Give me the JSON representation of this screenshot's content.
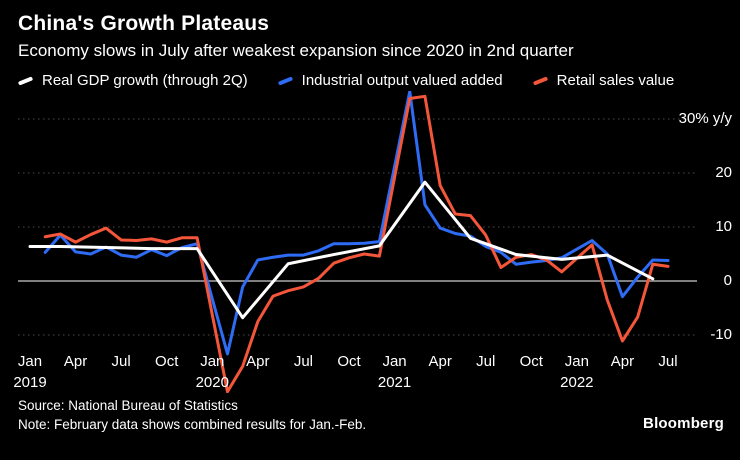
{
  "header": {
    "title": "China's Growth Plateaus",
    "subtitle": "Economy slows in July after weakest expansion since 2020 in 2nd quarter"
  },
  "legend": {
    "items": [
      {
        "label": "Real GDP growth (through 2Q)",
        "color": "#ffffff"
      },
      {
        "label": "Industrial output valued added",
        "color": "#2e6cf6"
      },
      {
        "label": "Retail sales value",
        "color": "#f4563a"
      }
    ]
  },
  "chart_data": {
    "type": "line",
    "x_unit": "month",
    "x_range": [
      "Jan 2019",
      "Jul 2022"
    ],
    "ylim": [
      -21,
      35
    ],
    "y_axis_label": "% y/y",
    "grid": "dotted horizontal",
    "legend_position": "top",
    "y_ticks": [
      {
        "label": "30% y/y",
        "value": 30
      },
      {
        "label": "20",
        "value": 20
      },
      {
        "label": "10",
        "value": 10
      },
      {
        "label": "0",
        "value": 0
      },
      {
        "label": "-10",
        "value": -10
      }
    ],
    "x_ticks": [
      {
        "index": 0,
        "label": "Jan",
        "year": "2019"
      },
      {
        "index": 3,
        "label": "Apr"
      },
      {
        "index": 6,
        "label": "Jul"
      },
      {
        "index": 9,
        "label": "Oct"
      },
      {
        "index": 12,
        "label": "Jan",
        "year": "2020"
      },
      {
        "index": 15,
        "label": "Apr"
      },
      {
        "index": 18,
        "label": "Jul"
      },
      {
        "index": 21,
        "label": "Oct"
      },
      {
        "index": 24,
        "label": "Jan",
        "year": "2021"
      },
      {
        "index": 27,
        "label": "Apr"
      },
      {
        "index": 30,
        "label": "Jul"
      },
      {
        "index": 33,
        "label": "Oct"
      },
      {
        "index": 36,
        "label": "Jan",
        "year": "2022"
      },
      {
        "index": 39,
        "label": "Apr"
      },
      {
        "index": 42,
        "label": "Jul"
      }
    ],
    "series": [
      {
        "name": "Real GDP growth (through 2Q)",
        "color": "#ffffff",
        "frequency": "quarterly",
        "x": [
          0,
          2,
          5,
          8,
          11,
          14,
          17,
          20,
          23,
          26,
          29,
          32,
          35,
          38,
          41
        ],
        "values": [
          6.4,
          6.4,
          6.2,
          6.0,
          6.0,
          -6.8,
          3.2,
          4.9,
          6.5,
          18.3,
          7.9,
          4.9,
          4.0,
          4.8,
          0.4
        ]
      },
      {
        "name": "Industrial output valued added",
        "color": "#2e6cf6",
        "frequency": "monthly",
        "values": [
          null,
          5.3,
          8.5,
          5.4,
          5.0,
          6.3,
          4.8,
          4.4,
          5.8,
          4.7,
          6.2,
          6.9,
          null,
          -13.5,
          -1.1,
          3.9,
          4.4,
          4.8,
          4.8,
          5.6,
          6.9,
          6.9,
          7.0,
          7.3,
          null,
          35.1,
          14.1,
          9.8,
          8.8,
          8.3,
          6.4,
          5.3,
          3.1,
          3.5,
          3.8,
          4.3,
          null,
          7.5,
          5.0,
          -2.9,
          0.7,
          3.9,
          3.8
        ]
      },
      {
        "name": "Retail sales value",
        "color": "#f4563a",
        "frequency": "monthly",
        "values": [
          null,
          8.2,
          8.7,
          7.2,
          8.6,
          9.8,
          7.6,
          7.5,
          7.8,
          7.2,
          8.0,
          8.0,
          null,
          -20.5,
          -15.8,
          -7.5,
          -2.8,
          -1.8,
          -1.1,
          0.5,
          3.3,
          4.3,
          5.0,
          4.6,
          null,
          33.8,
          34.2,
          17.7,
          12.4,
          12.1,
          8.5,
          2.5,
          4.4,
          4.9,
          3.9,
          1.7,
          null,
          6.7,
          -3.5,
          -11.1,
          -6.7,
          3.1,
          2.7
        ]
      }
    ]
  },
  "footer": {
    "source": "Source: National Bureau of Statistics",
    "note": "Note: February data shows combined results for Jan.-Feb.",
    "brand": "Bloomberg"
  }
}
